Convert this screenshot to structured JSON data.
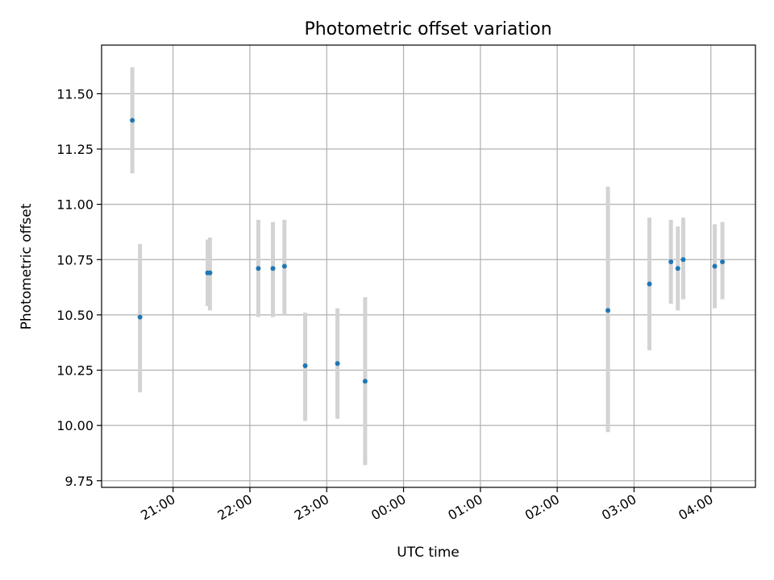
{
  "chart_data": {
    "type": "scatter",
    "title": "Photometric offset variation",
    "xlabel": "UTC time",
    "ylabel": "Photometric offset",
    "x_unit": "hours (UTC clock, values past 24:00 are next day)",
    "xlim": [
      20.07,
      28.58
    ],
    "ylim": [
      9.72,
      11.72
    ],
    "grid": true,
    "x_ticks": [
      {
        "value": 21,
        "label": "21:00"
      },
      {
        "value": 22,
        "label": "22:00"
      },
      {
        "value": 23,
        "label": "23:00"
      },
      {
        "value": 24,
        "label": "00:00"
      },
      {
        "value": 25,
        "label": "01:00"
      },
      {
        "value": 26,
        "label": "02:00"
      },
      {
        "value": 27,
        "label": "03:00"
      },
      {
        "value": 28,
        "label": "04:00"
      }
    ],
    "y_ticks": [
      {
        "value": 9.75,
        "label": "9.75"
      },
      {
        "value": 10.0,
        "label": "10.00"
      },
      {
        "value": 10.25,
        "label": "10.25"
      },
      {
        "value": 10.5,
        "label": "10.50"
      },
      {
        "value": 10.75,
        "label": "10.75"
      },
      {
        "value": 11.0,
        "label": "11.00"
      },
      {
        "value": 11.25,
        "label": "11.25"
      },
      {
        "value": 11.5,
        "label": "11.50"
      }
    ],
    "colors": {
      "point": "#1f77b4",
      "errorbar": "#d3d3d3",
      "grid": "#b0b0b0"
    },
    "points": [
      {
        "x": 20.47,
        "y": 11.38,
        "lo": 11.14,
        "hi": 11.62
      },
      {
        "x": 20.57,
        "y": 10.49,
        "lo": 10.15,
        "hi": 10.82
      },
      {
        "x": 21.45,
        "y": 10.69,
        "lo": 10.54,
        "hi": 10.84
      },
      {
        "x": 21.48,
        "y": 10.69,
        "lo": 10.52,
        "hi": 10.85
      },
      {
        "x": 22.11,
        "y": 10.71,
        "lo": 10.49,
        "hi": 10.93
      },
      {
        "x": 22.3,
        "y": 10.71,
        "lo": 10.49,
        "hi": 10.92
      },
      {
        "x": 22.45,
        "y": 10.72,
        "lo": 10.5,
        "hi": 10.93
      },
      {
        "x": 22.72,
        "y": 10.27,
        "lo": 10.02,
        "hi": 10.51
      },
      {
        "x": 23.14,
        "y": 10.28,
        "lo": 10.03,
        "hi": 10.53
      },
      {
        "x": 23.5,
        "y": 10.2,
        "lo": 9.82,
        "hi": 10.58
      },
      {
        "x": 26.66,
        "y": 10.52,
        "lo": 9.97,
        "hi": 11.08
      },
      {
        "x": 27.2,
        "y": 10.64,
        "lo": 10.34,
        "hi": 10.94
      },
      {
        "x": 27.48,
        "y": 10.74,
        "lo": 10.55,
        "hi": 10.93
      },
      {
        "x": 27.57,
        "y": 10.71,
        "lo": 10.52,
        "hi": 10.9
      },
      {
        "x": 27.64,
        "y": 10.75,
        "lo": 10.57,
        "hi": 10.94
      },
      {
        "x": 28.05,
        "y": 10.72,
        "lo": 10.53,
        "hi": 10.91
      },
      {
        "x": 28.15,
        "y": 10.74,
        "lo": 10.57,
        "hi": 10.92
      }
    ]
  }
}
